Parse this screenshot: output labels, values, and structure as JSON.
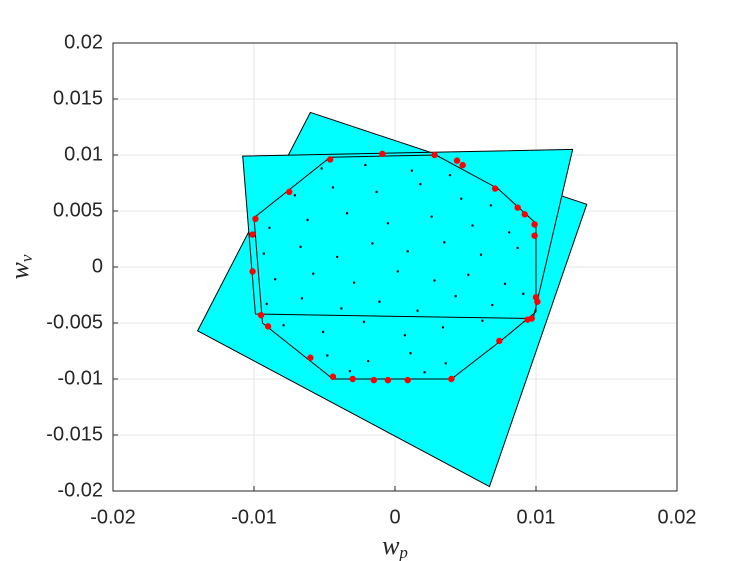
{
  "chart_data": {
    "type": "scatter",
    "xlabel": {
      "base": "w",
      "sub": "p"
    },
    "ylabel": {
      "base": "w",
      "sub": "v"
    },
    "xlim": [
      -0.02,
      0.02
    ],
    "ylim": [
      -0.02,
      0.02
    ],
    "xticks": [
      -0.02,
      -0.01,
      0,
      0.01,
      0.02
    ],
    "yticks": [
      -0.02,
      -0.015,
      -0.01,
      -0.005,
      0,
      0.005,
      0.01,
      0.015,
      0.02
    ],
    "grid": true,
    "polygons": [
      {
        "color": "#00ffff",
        "x": [
          -0.006,
          0.0136,
          0.0067,
          -0.014
        ],
        "y": [
          0.0138,
          0.0056,
          -0.0196,
          -0.0057
        ]
      },
      {
        "color": "#00ffff",
        "x": [
          -0.0108,
          0.0126,
          0.0098,
          -0.0099
        ],
        "y": [
          0.0099,
          0.0105,
          -0.0046,
          -0.0042
        ]
      }
    ],
    "outline": {
      "color": "#000000",
      "x": [
        -0.0046,
        0.0029,
        0.0073,
        0.01,
        0.01,
        0.0075,
        0.004,
        -0.0044,
        -0.0094,
        -0.01
      ],
      "y": [
        0.0098,
        0.01,
        0.007,
        0.0039,
        -0.004,
        -0.0066,
        -0.01,
        -0.01,
        -0.005,
        0.0044
      ]
    },
    "series": [
      {
        "color": "#000000",
        "x": [
          -0.0052,
          -0.0021,
          0.0012,
          0.0039,
          -0.0071,
          -0.0044,
          -0.0013,
          0.0018,
          0.0047,
          0.0068,
          -0.0089,
          -0.0062,
          -0.0034,
          -0.0005,
          0.0026,
          0.0055,
          0.0081,
          -0.0093,
          -0.0067,
          -0.0041,
          -0.0016,
          0.0009,
          0.0035,
          0.0061,
          0.0087,
          -0.0085,
          -0.0058,
          -0.0029,
          0.0002,
          0.0028,
          0.0052,
          0.0078,
          -0.0091,
          -0.0066,
          -0.0038,
          -0.0011,
          0.0016,
          0.0043,
          0.0069,
          0.0091,
          -0.0079,
          -0.0051,
          -0.0022,
          0.0007,
          0.0034,
          0.0062,
          -0.0048,
          -0.0019,
          0.0011,
          0.0036,
          -0.0032,
          0.0021
        ],
        "y": [
          0.0088,
          0.0091,
          0.0086,
          0.0082,
          0.0064,
          0.0071,
          0.0067,
          0.0074,
          0.0061,
          0.0055,
          0.0035,
          0.0042,
          0.0048,
          0.0039,
          0.0045,
          0.0037,
          0.0031,
          0.0012,
          0.0018,
          0.0009,
          0.0021,
          0.0014,
          0.0022,
          0.0011,
          0.0017,
          -0.0011,
          -0.0006,
          -0.0014,
          -0.0004,
          -0.0012,
          -0.0007,
          -0.0015,
          -0.0033,
          -0.0028,
          -0.0037,
          -0.0031,
          -0.0039,
          -0.0026,
          -0.0034,
          -0.0024,
          -0.0052,
          -0.0058,
          -0.0049,
          -0.0061,
          -0.0054,
          -0.0048,
          -0.0079,
          -0.0084,
          -0.0077,
          -0.0086,
          -0.0093,
          -0.0094
        ]
      },
      {
        "color": "#ff0000",
        "x": [
          -0.0046,
          -0.0009,
          0.0028,
          0.0044,
          0.0048,
          0.0071,
          0.0087,
          0.0092,
          0.0099,
          0.0099,
          0.01,
          0.0101,
          0.0097,
          0.0094,
          0.0074,
          0.004,
          0.0009,
          -0.0005,
          -0.0015,
          -0.003,
          -0.0044,
          -0.006,
          -0.009,
          -0.0095,
          -0.0101,
          -0.0101,
          -0.0099,
          -0.0075
        ],
        "y": [
          0.0096,
          0.0101,
          0.01,
          0.0095,
          0.0091,
          0.007,
          0.0053,
          0.0047,
          0.0038,
          0.0028,
          -0.0027,
          -0.0031,
          -0.0046,
          -0.0047,
          -0.0066,
          -0.01,
          -0.0101,
          -0.0101,
          -0.0101,
          -0.01,
          -0.0098,
          -0.0081,
          -0.0053,
          -0.0043,
          -0.0004,
          0.0029,
          0.0043,
          0.0067
        ]
      }
    ]
  }
}
